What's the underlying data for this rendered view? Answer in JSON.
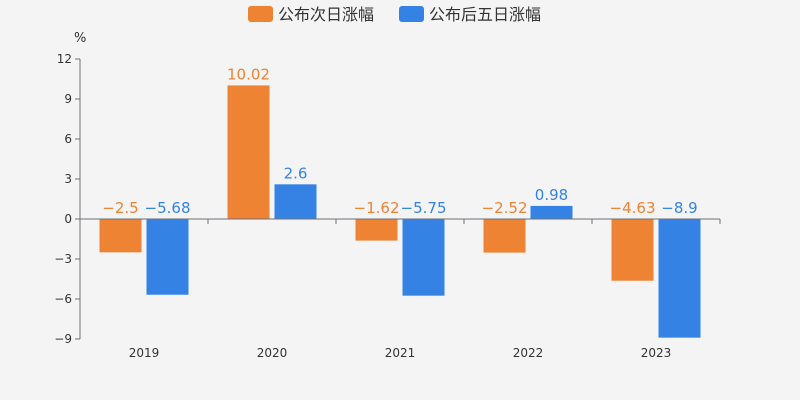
{
  "chart_data": {
    "type": "bar",
    "title": "",
    "xlabel": "",
    "ylabel": "%",
    "ylim": [
      -9,
      12
    ],
    "yticks": [
      12,
      9,
      6,
      3,
      0,
      -3,
      -6,
      -9
    ],
    "categories": [
      "2019",
      "2020",
      "2021",
      "2022",
      "2023"
    ],
    "legend_position": "top-center",
    "series": [
      {
        "name": "公布次日涨幅",
        "color": "#ee8333",
        "values": [
          -2.5,
          10.02,
          -1.62,
          -2.52,
          -4.63
        ],
        "labels": [
          "−2.5",
          "10.02",
          "−1.62",
          "−2.52",
          "−4.63"
        ]
      },
      {
        "name": "公布后五日涨幅",
        "color": "#3483e4",
        "values": [
          -5.68,
          2.6,
          -5.75,
          0.98,
          -8.9
        ],
        "labels": [
          "−5.68",
          "2.6",
          "−5.75",
          "0.98",
          "−8.9"
        ]
      }
    ]
  }
}
